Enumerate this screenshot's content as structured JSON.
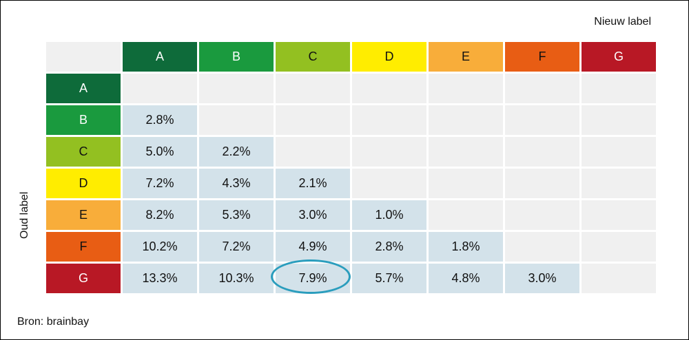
{
  "corner_label": "Nieuw label",
  "row_axis_label": "Oud label",
  "source": "Bron: brainbay",
  "colors": {
    "A": "#0e6b3a",
    "B": "#1a9a3e",
    "C": "#93c021",
    "D": "#ffed00",
    "E": "#f8ad3a",
    "F": "#e85d14",
    "G": "#b81825",
    "cell_value": "#d3e2ea",
    "cell_empty": "#f0f0f0",
    "highlight": "#2a9dbd"
  },
  "text_colors": {
    "A": "#ffffff",
    "B": "#ffffff",
    "C": "#111111",
    "D": "#111111",
    "E": "#111111",
    "F": "#111111",
    "G": "#ffffff"
  },
  "chart_data": {
    "type": "table",
    "columns": [
      "A",
      "B",
      "C",
      "D",
      "E",
      "F",
      "G"
    ],
    "rows": [
      "A",
      "B",
      "C",
      "D",
      "E",
      "F",
      "G"
    ],
    "xlabel": "Nieuw label",
    "ylabel": "Oud label",
    "values": [
      [
        "",
        "",
        "",
        "",
        "",
        "",
        ""
      ],
      [
        "2.8%",
        "",
        "",
        "",
        "",
        "",
        ""
      ],
      [
        "5.0%",
        "2.2%",
        "",
        "",
        "",
        "",
        ""
      ],
      [
        "7.2%",
        "4.3%",
        "2.1%",
        "",
        "",
        "",
        ""
      ],
      [
        "8.2%",
        "5.3%",
        "3.0%",
        "1.0%",
        "",
        "",
        ""
      ],
      [
        "10.2%",
        "7.2%",
        "4.9%",
        "2.8%",
        "1.8%",
        "",
        ""
      ],
      [
        "13.3%",
        "10.3%",
        "7.9%",
        "5.7%",
        "4.8%",
        "3.0%",
        ""
      ]
    ],
    "highlighted_cell": {
      "row": "G",
      "column": "C"
    }
  }
}
